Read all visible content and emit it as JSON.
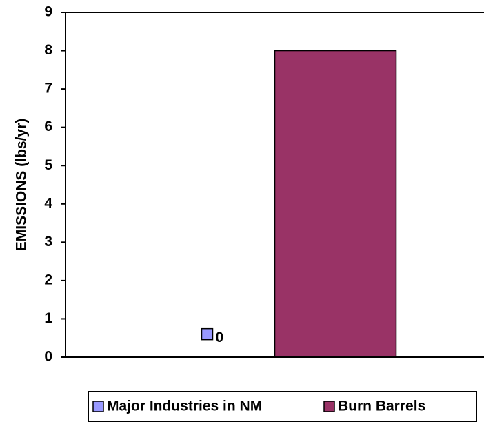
{
  "chart_data": {
    "type": "bar",
    "y_label": "EMISSIONS (lbs/yr)",
    "categories": [
      null
    ],
    "series": [
      {
        "name": "Major Industries in NM",
        "color": "#9999ff",
        "values": [
          0
        ]
      },
      {
        "name": "Burn Barrels",
        "color": "#993366",
        "values": [
          8
        ]
      }
    ],
    "ylim": [
      0,
      9
    ],
    "yticks": [
      0,
      1,
      2,
      3,
      4,
      5,
      6,
      7,
      8,
      9
    ],
    "legend": "bottom"
  }
}
